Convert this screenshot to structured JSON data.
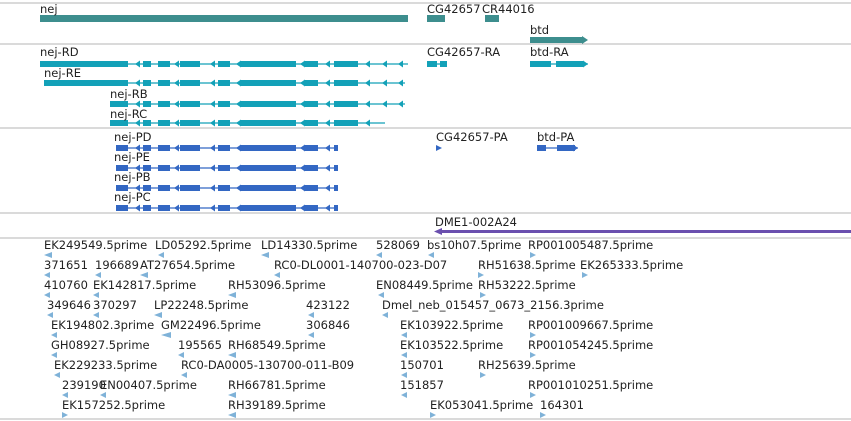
{
  "colors": {
    "gene": "#3d8e8e",
    "transcript": "#13a1b8",
    "protein": "#3367c3",
    "noncoding": "#6a4fae",
    "est": "#7fb2d8",
    "separator": "#b4b4b4",
    "label": "#222222"
  },
  "tracks": {
    "genes": {
      "features": [
        {
          "label": "nej"
        },
        {
          "label": "CG42657"
        },
        {
          "label": "CR44016"
        },
        {
          "label": "btd"
        }
      ]
    },
    "transcripts": {
      "features": [
        {
          "label": "nej-RD"
        },
        {
          "label": "nej-RE"
        },
        {
          "label": "nej-RB"
        },
        {
          "label": "nej-RC"
        },
        {
          "label": "CG42657-RA"
        },
        {
          "label": "btd-RA"
        }
      ]
    },
    "proteins": {
      "features": [
        {
          "label": "nej-PD"
        },
        {
          "label": "nej-PE"
        },
        {
          "label": "nej-PB"
        },
        {
          "label": "nej-PC"
        },
        {
          "label": "CG42657-PA"
        },
        {
          "label": "btd-PA"
        }
      ]
    },
    "noncoding": {
      "features": [
        {
          "label": "DME1-002A24"
        }
      ]
    },
    "ests": {
      "features": [
        {
          "label": "EK249549.5prime"
        },
        {
          "label": "LD05292.5prime"
        },
        {
          "label": "LD14330.5prime"
        },
        {
          "label": "528069"
        },
        {
          "label": "bs10h07.5prime"
        },
        {
          "label": "RP001005487.5prime"
        },
        {
          "label": "371651"
        },
        {
          "label": "196689"
        },
        {
          "label": "AT27654.5prime"
        },
        {
          "label": "RC0-DL0001-140700-023-D07"
        },
        {
          "label": "RH51638.5prime"
        },
        {
          "label": "EK265333.5prime"
        },
        {
          "label": "410760"
        },
        {
          "label": "EK142817.5prime"
        },
        {
          "label": "RH53096.5prime"
        },
        {
          "label": "EN08449.5prime"
        },
        {
          "label": "RH53222.5prime"
        },
        {
          "label": "349646"
        },
        {
          "label": "370297"
        },
        {
          "label": "LP22248.5prime"
        },
        {
          "label": "423122"
        },
        {
          "label": "Dmel_neb_015457_0673_2156.3prime"
        },
        {
          "label": "EK194802.3prime"
        },
        {
          "label": "GM22496.5prime"
        },
        {
          "label": "306846"
        },
        {
          "label": "EK103922.5prime"
        },
        {
          "label": "RP001009667.5prime"
        },
        {
          "label": "GH08927.5prime"
        },
        {
          "label": "195565"
        },
        {
          "label": "RH68549.5prime"
        },
        {
          "label": "EK103522.5prime"
        },
        {
          "label": "RP001054245.5prime"
        },
        {
          "label": "EK229233.5prime"
        },
        {
          "label": "RC0-DA0005-130700-011-B09"
        },
        {
          "label": "150701"
        },
        {
          "label": "RH25639.5prime"
        },
        {
          "label": "239190"
        },
        {
          "label": "EN00407.5prime"
        },
        {
          "label": "RH66781.5prime"
        },
        {
          "label": "151857"
        },
        {
          "label": "RP001010251.5prime"
        },
        {
          "label": "EK157252.5prime"
        },
        {
          "label": "RH39189.5prime"
        },
        {
          "label": "EK053041.5prime"
        },
        {
          "label": "164301"
        }
      ]
    }
  }
}
